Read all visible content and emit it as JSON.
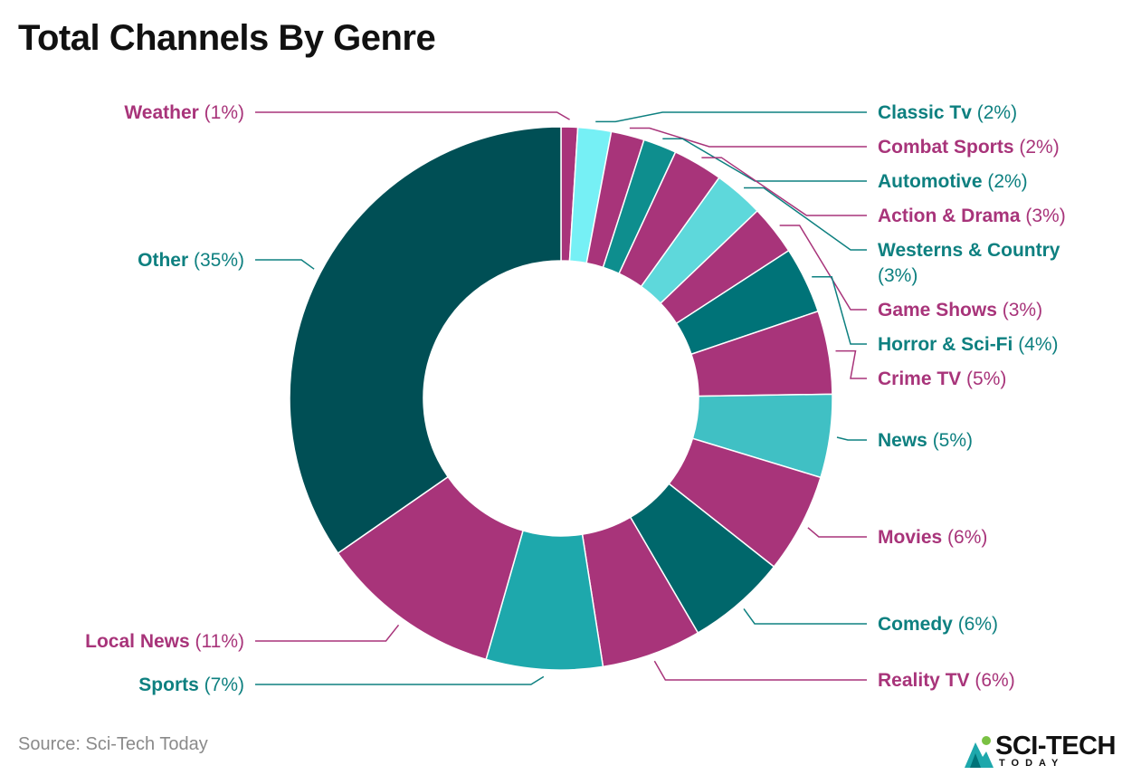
{
  "header": {
    "title": "Total Channels By Genre"
  },
  "footer": {
    "source": "Source: Sci-Tech Today",
    "brand_name": "SCI-TECH",
    "brand_sub": "TODAY"
  },
  "colors": {
    "magenta": "#A8347A",
    "teal_text": "#0E8080",
    "dark_teal": "#004F55",
    "teal": "#007378"
  },
  "chart_data": {
    "type": "donut",
    "title": "Total Channels By Genre",
    "unit": "%",
    "slices": [
      {
        "name": "Weather",
        "value": 1,
        "label": "(1%)",
        "color": "#A8347A"
      },
      {
        "name": "Classic Tv",
        "value": 2,
        "label": "(2%)",
        "color": "#76F0F5"
      },
      {
        "name": "Combat Sports",
        "value": 2,
        "label": "(2%)",
        "color": "#A8347A"
      },
      {
        "name": "Automotive",
        "value": 2,
        "label": "(2%)",
        "color": "#0E8E8E"
      },
      {
        "name": "Action & Drama",
        "value": 3,
        "label": "(3%)",
        "color": "#A8347A"
      },
      {
        "name": "Westerns & Country",
        "value": 3,
        "label": "(3%)",
        "color": "#5ED8DB"
      },
      {
        "name": "Game Shows",
        "value": 3,
        "label": "(3%)",
        "color": "#A8347A"
      },
      {
        "name": "Horror & Sci-Fi",
        "value": 4,
        "label": "(4%)",
        "color": "#007378"
      },
      {
        "name": "Crime TV",
        "value": 5,
        "label": "(5%)",
        "color": "#A8347A"
      },
      {
        "name": "News",
        "value": 5,
        "label": "(5%)",
        "color": "#40C0C4"
      },
      {
        "name": "Movies",
        "value": 6,
        "label": "(6%)",
        "color": "#A8347A"
      },
      {
        "name": "Comedy",
        "value": 6,
        "label": "(6%)",
        "color": "#00676B"
      },
      {
        "name": "Reality TV",
        "value": 6,
        "label": "(6%)",
        "color": "#A8347A"
      },
      {
        "name": "Sports",
        "value": 7,
        "label": "(7%)",
        "color": "#1EA8AC"
      },
      {
        "name": "Local News",
        "value": 11,
        "label": "(11%)",
        "color": "#A8347A"
      },
      {
        "name": "Other",
        "value": 35,
        "label": "(35%)",
        "color": "#004F55"
      }
    ]
  }
}
